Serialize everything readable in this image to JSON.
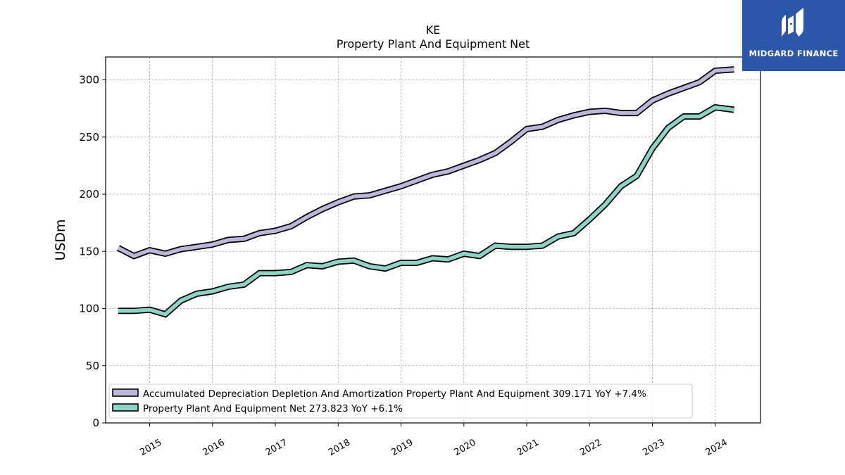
{
  "brand": {
    "name": "MIDGARD FINANCE",
    "color": "#2c56a8"
  },
  "chart_data": {
    "type": "line",
    "title": "KE",
    "subtitle": "Property Plant And Equipment Net",
    "xlabel": "",
    "ylabel": "USDm",
    "xlim": [
      2014.3,
      2024.72
    ],
    "ylim": [
      0,
      320
    ],
    "yticks": [
      0,
      50,
      100,
      150,
      200,
      250,
      300
    ],
    "xticks": [
      "2015",
      "2016",
      "2017",
      "2018",
      "2019",
      "2020",
      "2021",
      "2022",
      "2023",
      "2024"
    ],
    "grid": true,
    "legend_position": "lower-left",
    "x": [
      2014.5,
      2014.75,
      2015.0,
      2015.25,
      2015.5,
      2015.75,
      2016.0,
      2016.25,
      2016.5,
      2016.75,
      2017.0,
      2017.25,
      2017.5,
      2017.75,
      2018.0,
      2018.25,
      2018.5,
      2018.75,
      2019.0,
      2019.25,
      2019.5,
      2019.75,
      2020.0,
      2020.25,
      2020.5,
      2020.75,
      2021.0,
      2021.25,
      2021.5,
      2021.75,
      2022.0,
      2022.25,
      2022.5,
      2022.75,
      2023.0,
      2023.25,
      2023.5,
      2023.75,
      2024.0,
      2024.3
    ],
    "series": [
      {
        "name": "Accumulated Depreciation Depletion And Amortization Property Plant And Equipment",
        "legend_label": "Accumulated Depreciation Depletion And Amortization Property Plant And Equipment  309.171 YoY +7.4%",
        "color": "#bcb6da",
        "values": [
          153,
          146,
          151,
          148,
          152,
          154,
          156,
          160,
          161,
          166,
          168,
          172,
          180,
          187,
          193,
          198,
          199,
          203,
          207,
          212,
          217,
          220,
          225,
          230,
          236,
          246,
          257,
          259,
          265,
          269,
          272,
          273,
          271,
          271,
          282,
          288,
          293,
          298,
          308,
          309.171
        ]
      },
      {
        "name": "Property Plant And Equipment Net",
        "legend_label": "Property Plant And Equipment Net  273.823 YoY +6.1%",
        "color": "#8dd3c7",
        "values": [
          98,
          98,
          99,
          95,
          107,
          113,
          115,
          119,
          121,
          131,
          131,
          132,
          138,
          137,
          141,
          142,
          137,
          135,
          140,
          140,
          144,
          143,
          148,
          146,
          155,
          154,
          154,
          155,
          163,
          166,
          178,
          191,
          207,
          216,
          240,
          258,
          268,
          268,
          276,
          273.823
        ]
      }
    ]
  }
}
